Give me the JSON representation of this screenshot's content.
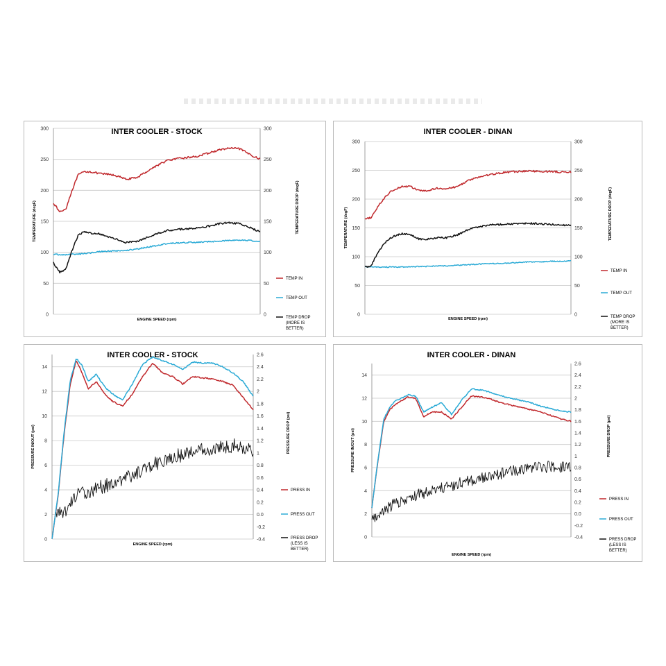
{
  "chart_data": [
    {
      "type": "line",
      "title": "INTER COOLER - STOCK",
      "xlabel": "ENGINE SPEED (rpm)",
      "ylabel": "TEMPERATURE (degF)",
      "y2label": "TEMPERATURE DROP (degF)",
      "ylim": [
        0,
        300
      ],
      "y2lim": [
        0,
        300
      ],
      "yticks": [
        "0",
        "50",
        "100",
        "150",
        "200",
        "250",
        "300"
      ],
      "y2ticks": [
        "0",
        "50",
        "100",
        "150",
        "200",
        "250",
        "300"
      ],
      "x": [
        0,
        3,
        6,
        9,
        12,
        15,
        18,
        22,
        26,
        30,
        35,
        40,
        45,
        50,
        55,
        60,
        65,
        70,
        75,
        80,
        85,
        90,
        95,
        100
      ],
      "series": [
        {
          "name": "TEMP IN",
          "color": "#c0282c",
          "axis": "left",
          "noise": 1.5,
          "values": [
            180,
            165,
            170,
            200,
            225,
            230,
            230,
            227,
            226,
            224,
            218,
            220,
            230,
            240,
            248,
            251,
            253,
            255,
            260,
            265,
            268,
            267,
            258,
            250
          ]
        },
        {
          "name": "TEMP OUT",
          "color": "#2aaad6",
          "axis": "left",
          "noise": 1,
          "values": [
            97,
            96,
            96,
            97,
            97,
            98,
            99,
            101,
            102,
            102,
            103,
            105,
            108,
            111,
            114,
            115,
            116,
            116,
            117,
            118,
            119,
            120,
            119,
            117
          ]
        },
        {
          "name": "TEMP DROP (MORE IS BETTER)",
          "color": "#111111",
          "axis": "right",
          "noise": 1.5,
          "values": [
            83,
            68,
            73,
            103,
            128,
            133,
            131,
            130,
            125,
            122,
            116,
            117,
            124,
            130,
            135,
            137,
            138,
            140,
            142,
            146,
            148,
            146,
            140,
            133
          ]
        }
      ]
    },
    {
      "type": "line",
      "title": "INTER COOLER - DINAN",
      "xlabel": "ENGINE SPEED (rpm)",
      "ylabel": "TEMPERATURE (degF)",
      "y2label": "TEMPERATURE DROP (degF)",
      "ylim": [
        0,
        300
      ],
      "y2lim": [
        0,
        300
      ],
      "yticks": [
        "0",
        "50",
        "100",
        "150",
        "200",
        "250",
        "300"
      ],
      "y2ticks": [
        "0",
        "50",
        "100",
        "150",
        "200",
        "250",
        "300"
      ],
      "x": [
        0,
        3,
        6,
        9,
        12,
        15,
        18,
        22,
        26,
        30,
        35,
        40,
        45,
        50,
        55,
        60,
        65,
        70,
        75,
        80,
        85,
        90,
        95,
        100
      ],
      "series": [
        {
          "name": "TEMP IN",
          "color": "#c0282c",
          "axis": "left",
          "noise": 1.5,
          "values": [
            165,
            168,
            185,
            200,
            212,
            218,
            222,
            222,
            215,
            214,
            219,
            218,
            222,
            232,
            238,
            242,
            245,
            247,
            248,
            249,
            248,
            248,
            247,
            247
          ]
        },
        {
          "name": "TEMP OUT",
          "color": "#2aaad6",
          "axis": "left",
          "noise": 0.8,
          "values": [
            83,
            82,
            82,
            82,
            82,
            82,
            82,
            82,
            83,
            83,
            84,
            84,
            85,
            86,
            87,
            88,
            88,
            89,
            90,
            91,
            91,
            92,
            92,
            93
          ]
        },
        {
          "name": "TEMP DROP (MORE IS BETTER)",
          "color": "#111111",
          "axis": "right",
          "noise": 1.5,
          "values": [
            82,
            84,
            105,
            122,
            132,
            137,
            140,
            139,
            131,
            130,
            133,
            133,
            138,
            147,
            152,
            155,
            156,
            157,
            157,
            158,
            157,
            156,
            155,
            155
          ]
        }
      ]
    },
    {
      "type": "line",
      "title": "INTER COOLER - STOCK",
      "xlabel": "ENGINE SPEED (rpm)",
      "ylabel": "PRESSURE IN/OUT (psi)",
      "y2label": "PRESSURE DROP (psi)",
      "ylim": [
        0,
        15
      ],
      "y2lim": [
        -0.4,
        2.6
      ],
      "yticks": [
        "0",
        "2",
        "4",
        "6",
        "8",
        "10",
        "12",
        "14"
      ],
      "y2ticks": [
        "-0.4",
        "-0.2",
        "0.0",
        "0.2",
        "0.4",
        "0.6",
        "0.8",
        "1",
        "1.2",
        "1.4",
        "1.6",
        "1.8",
        "2",
        "2.2",
        "2.4",
        "2.6"
      ],
      "x": [
        0,
        3,
        6,
        9,
        12,
        15,
        18,
        22,
        26,
        30,
        35,
        40,
        45,
        50,
        55,
        60,
        65,
        70,
        75,
        80,
        85,
        90,
        95,
        100
      ],
      "series": [
        {
          "name": "PRESS IN",
          "color": "#c0282c",
          "axis": "left",
          "noise": 0.05,
          "values": [
            0,
            3.5,
            8.5,
            12.5,
            14.5,
            13.5,
            12.2,
            12.8,
            11.8,
            11.2,
            10.8,
            11.8,
            13.2,
            14.3,
            13.5,
            13.2,
            12.6,
            13.2,
            13.1,
            13.0,
            12.8,
            12.5,
            11.5,
            10.5
          ]
        },
        {
          "name": "PRESS OUT",
          "color": "#2aaad6",
          "axis": "left",
          "noise": 0.05,
          "values": [
            0,
            3.6,
            8.7,
            12.8,
            14.7,
            14.1,
            12.8,
            13.4,
            12.4,
            11.8,
            11.3,
            12.6,
            14.2,
            14.8,
            14.5,
            14.2,
            13.8,
            14.4,
            14.3,
            14.3,
            14.0,
            13.5,
            12.8,
            11.6
          ]
        },
        {
          "name": "PRESS DROP (LESS IS BETTER)",
          "color": "#111111",
          "axis": "right",
          "noise": 0.12,
          "start": 2,
          "values": [
            0,
            0,
            0,
            0.2,
            0.32,
            0.35,
            0.38,
            0.42,
            0.46,
            0.52,
            0.58,
            0.64,
            0.72,
            0.8,
            0.88,
            0.92,
            0.98,
            1.02,
            1.05,
            1.08,
            1.1,
            1.12,
            1.1,
            1.05
          ]
        }
      ]
    },
    {
      "type": "line",
      "title": "INTER COOLER - DINAN",
      "xlabel": "ENGINE SPEED (rpm)",
      "ylabel": "PRESSURE IN/OUT (psi)",
      "y2label": "PRESSURE DROP (psi)",
      "ylim": [
        0,
        15
      ],
      "y2lim": [
        -0.4,
        2.6
      ],
      "yticks": [
        "0",
        "2",
        "4",
        "6",
        "8",
        "10",
        "12",
        "14"
      ],
      "y2ticks": [
        "-0.4",
        "-0.2",
        "0.0",
        "0.2",
        "0.4",
        "0.6",
        "0.8",
        "1",
        "1.2",
        "1.4",
        "1.6",
        "1.8",
        "2",
        "2.2",
        "2.4",
        "2.6"
      ],
      "x": [
        0,
        3,
        6,
        9,
        12,
        15,
        18,
        22,
        26,
        30,
        35,
        40,
        45,
        50,
        55,
        60,
        65,
        70,
        75,
        80,
        85,
        90,
        95,
        100
      ],
      "series": [
        {
          "name": "PRESS IN",
          "color": "#c0282c",
          "axis": "left",
          "noise": 0.05,
          "values": [
            2.5,
            6.5,
            10.0,
            11.0,
            11.5,
            11.8,
            12.1,
            12.0,
            10.4,
            10.8,
            10.8,
            10.2,
            11.2,
            12.2,
            12.1,
            11.9,
            11.6,
            11.4,
            11.2,
            11.0,
            10.8,
            10.5,
            10.2,
            10.0
          ]
        },
        {
          "name": "PRESS OUT",
          "color": "#2aaad6",
          "axis": "left",
          "noise": 0.05,
          "values": [
            2.5,
            6.6,
            10.2,
            11.2,
            11.8,
            12.0,
            12.3,
            12.2,
            10.8,
            11.2,
            11.6,
            10.6,
            11.8,
            12.8,
            12.7,
            12.5,
            12.2,
            12.0,
            11.8,
            11.6,
            11.3,
            11.1,
            10.9,
            10.8
          ]
        },
        {
          "name": "PRESS DROP (LESS IS BETTER)",
          "color": "#111111",
          "axis": "right",
          "noise": 0.1,
          "start": 0,
          "values": [
            -0.1,
            -0.05,
            0.05,
            0.12,
            0.18,
            0.22,
            0.27,
            0.32,
            0.36,
            0.4,
            0.44,
            0.48,
            0.54,
            0.58,
            0.62,
            0.66,
            0.7,
            0.74,
            0.76,
            0.79,
            0.8,
            0.82,
            0.81,
            0.8
          ]
        }
      ]
    }
  ]
}
